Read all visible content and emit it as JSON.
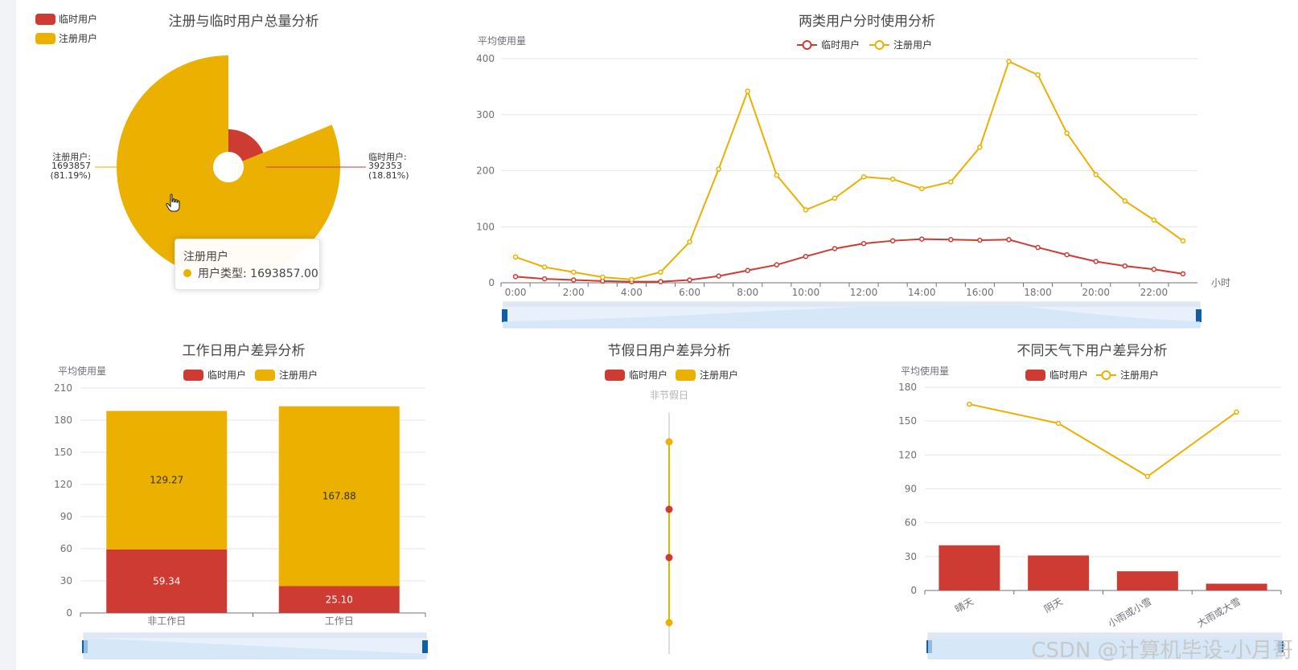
{
  "colors": {
    "temp": "#cd3b33",
    "reg": "#ebb000",
    "axis": "#6e7079",
    "grid": "#e6e6e6",
    "title": "#464646"
  },
  "pie": {
    "title": "注册与临时用户总量分析",
    "legend": [
      "临时用户",
      "注册用户"
    ],
    "labels": [
      {
        "name": "注册用户:",
        "value": "1693857",
        "pct": "(81.19%)"
      },
      {
        "name": "临时用户:",
        "value": "392353",
        "pct": "(18.81%)"
      }
    ]
  },
  "tooltip": {
    "title": "注册用户",
    "row": "用户类型: 1693857.00"
  },
  "watermark": "CSDN @计算机毕设-小月哥",
  "chart_data": [
    {
      "type": "pie",
      "title": "注册与临时用户总量分析",
      "rose": true,
      "slices": [
        {
          "name": "临时用户",
          "value": 392353,
          "percent": 18.81
        },
        {
          "name": "注册用户",
          "value": 1693857,
          "percent": 81.19
        }
      ]
    },
    {
      "type": "line",
      "title": "两类用户分时使用分析",
      "ylabel": "平均使用量",
      "xlabel": "小时",
      "ylim": [
        0,
        400
      ],
      "yticks": [
        0,
        100,
        200,
        300,
        400
      ],
      "x": [
        "0:00",
        "1:00",
        "2:00",
        "3:00",
        "4:00",
        "5:00",
        "6:00",
        "7:00",
        "8:00",
        "9:00",
        "10:00",
        "11:00",
        "12:00",
        "13:00",
        "14:00",
        "15:00",
        "16:00",
        "17:00",
        "18:00",
        "19:00",
        "20:00",
        "21:00",
        "22:00",
        "23:00"
      ],
      "xticks": [
        "0:00",
        "2:00",
        "4:00",
        "6:00",
        "8:00",
        "10:00",
        "12:00",
        "14:00",
        "16:00",
        "18:00",
        "20:00",
        "22:00"
      ],
      "legend": [
        "临时用户",
        "注册用户"
      ],
      "series": [
        {
          "name": "临时用户",
          "values": [
            11,
            7,
            5,
            3,
            2,
            2,
            5,
            12,
            22,
            32,
            47,
            61,
            70,
            75,
            78,
            77,
            76,
            77,
            63,
            50,
            38,
            30,
            24,
            16
          ]
        },
        {
          "name": "注册用户",
          "values": [
            46,
            28,
            19,
            10,
            6,
            19,
            73,
            203,
            342,
            192,
            130,
            151,
            189,
            185,
            168,
            180,
            242,
            395,
            371,
            267,
            193,
            146,
            112,
            75
          ]
        }
      ]
    },
    {
      "type": "bar",
      "title": "工作日用户差异分析",
      "stacked": true,
      "ylabel": "平均使用量",
      "ylim": [
        0,
        210
      ],
      "yticks": [
        0,
        30,
        60,
        90,
        120,
        150,
        180,
        210
      ],
      "categories": [
        "非工作日",
        "工作日"
      ],
      "legend": [
        "临时用户",
        "注册用户"
      ],
      "series": [
        {
          "name": "临时用户",
          "values": [
            59.34,
            25.1
          ],
          "labels": [
            "59.34",
            "25.10"
          ]
        },
        {
          "name": "注册用户",
          "values": [
            129.27,
            167.88
          ],
          "labels": [
            "129.27",
            "167.88"
          ]
        }
      ]
    },
    {
      "type": "scatter",
      "title": "节假日用户差异分析",
      "category": "非节假日",
      "legend": [
        "临时用户",
        "注册用户"
      ],
      "series": [
        {
          "name": "临时用户",
          "values": [
            0.6,
            0.4
          ]
        },
        {
          "name": "注册用户",
          "values": [
            0.88,
            0.13
          ]
        }
      ]
    },
    {
      "type": "bar",
      "title": "不同天气下用户差异分析",
      "ylabel": "平均使用量",
      "ylim": [
        0,
        180
      ],
      "yticks": [
        0,
        30,
        60,
        90,
        120,
        150,
        180
      ],
      "categories": [
        "晴天",
        "阴天",
        "小雨或小雪",
        "大雨或大雪"
      ],
      "legend": [
        "临时用户",
        "注册用户"
      ],
      "series": [
        {
          "name": "临时用户",
          "type": "bar",
          "values": [
            40,
            31,
            17,
            6
          ]
        },
        {
          "name": "注册用户",
          "type": "line",
          "values": [
            165,
            148,
            101,
            158
          ]
        }
      ]
    }
  ]
}
